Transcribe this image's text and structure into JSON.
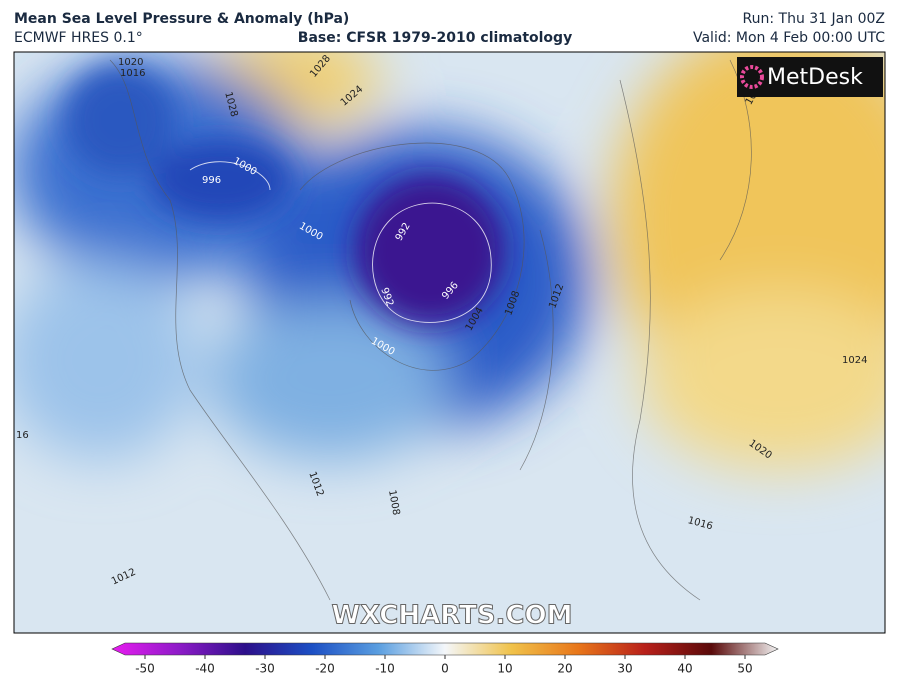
{
  "header": {
    "title": "Mean Sea Level Pressure & Anomaly (hPa)",
    "model": "ECMWF HRES 0.1°",
    "base": "Base: CFSR 1979-2010 climatology",
    "run": "Run: Thu 31 Jan 00Z",
    "valid": "Valid: Mon 4 Feb 00:00 UTC"
  },
  "logo": "MetDesk",
  "watermark": "WXCHARTS.COM",
  "colorbar": {
    "ticks": [
      -50,
      -40,
      -30,
      -20,
      -10,
      0,
      10,
      20,
      30,
      40,
      50
    ]
  },
  "contour_labels": [
    1020,
    1016,
    1028,
    1028,
    1024,
    1000,
    996,
    1000,
    992,
    992,
    996,
    1000,
    1004,
    1008,
    1012,
    1024,
    1024,
    1020,
    1016,
    1012,
    1012,
    1008,
    16
  ]
}
